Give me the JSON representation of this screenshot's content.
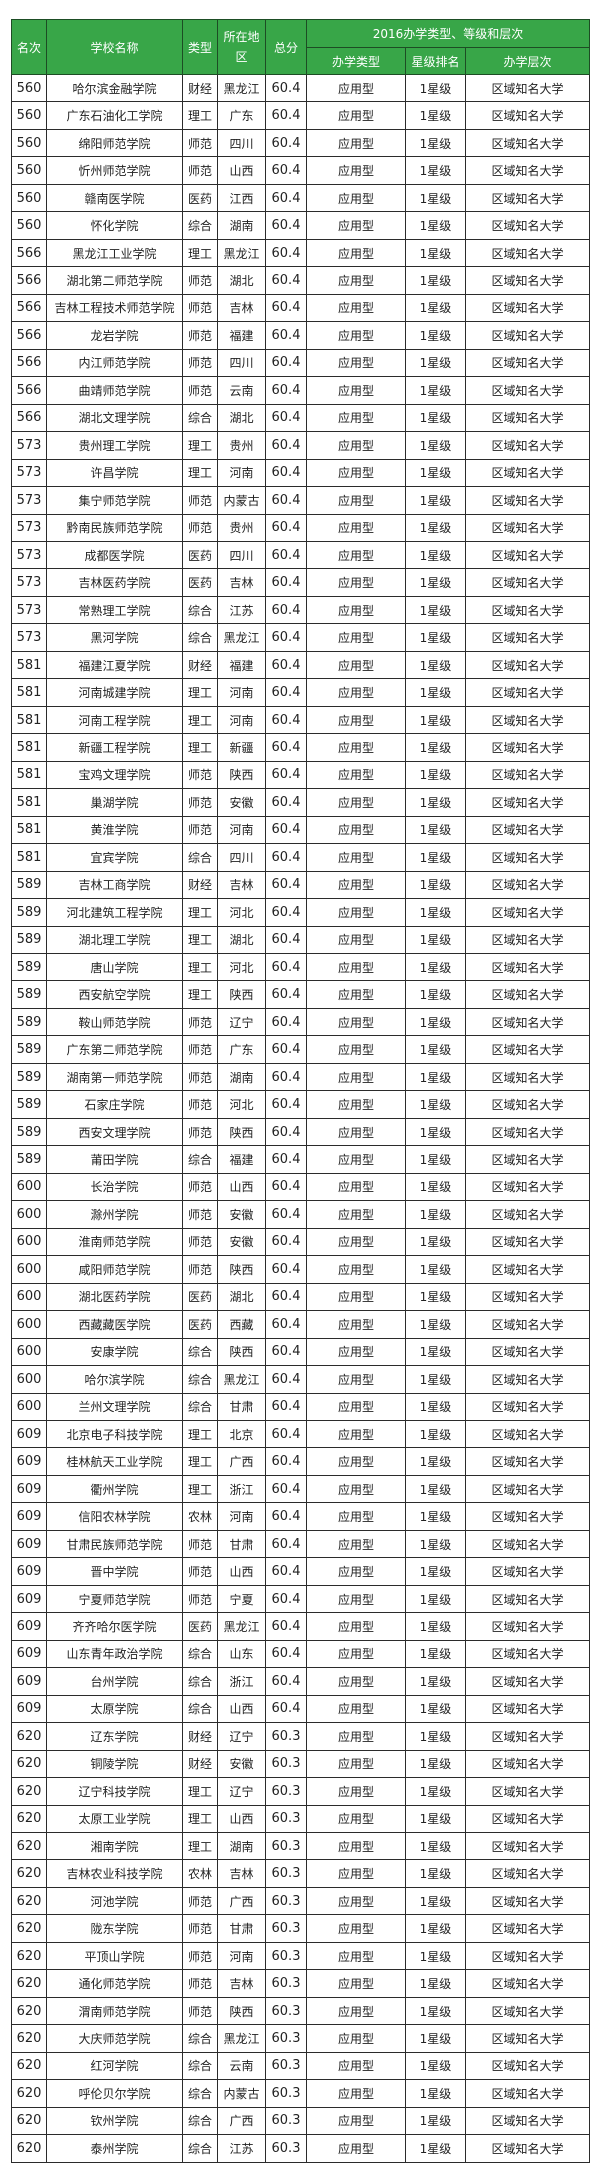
{
  "header": {
    "rank": "名次",
    "school": "学校名称",
    "type": "类型",
    "region": "所在地区",
    "score": "总分",
    "group": "2016办学类型、等级和层次",
    "school_type": "办学类型",
    "star": "星级排名",
    "level": "办学层次"
  },
  "colors": {
    "header_bg": "#38a648",
    "header_text": "#ffffff"
  },
  "rows": [
    [
      "560",
      "哈尔滨金融学院",
      "财经",
      "黑龙江",
      "60.4",
      "应用型",
      "1星级",
      "区域知名大学"
    ],
    [
      "560",
      "广东石油化工学院",
      "理工",
      "广东",
      "60.4",
      "应用型",
      "1星级",
      "区域知名大学"
    ],
    [
      "560",
      "绵阳师范学院",
      "师范",
      "四川",
      "60.4",
      "应用型",
      "1星级",
      "区域知名大学"
    ],
    [
      "560",
      "忻州师范学院",
      "师范",
      "山西",
      "60.4",
      "应用型",
      "1星级",
      "区域知名大学"
    ],
    [
      "560",
      "赣南医学院",
      "医药",
      "江西",
      "60.4",
      "应用型",
      "1星级",
      "区域知名大学"
    ],
    [
      "560",
      "怀化学院",
      "综合",
      "湖南",
      "60.4",
      "应用型",
      "1星级",
      "区域知名大学"
    ],
    [
      "566",
      "黑龙江工业学院",
      "理工",
      "黑龙江",
      "60.4",
      "应用型",
      "1星级",
      "区域知名大学"
    ],
    [
      "566",
      "湖北第二师范学院",
      "师范",
      "湖北",
      "60.4",
      "应用型",
      "1星级",
      "区域知名大学"
    ],
    [
      "566",
      "吉林工程技术师范学院",
      "师范",
      "吉林",
      "60.4",
      "应用型",
      "1星级",
      "区域知名大学"
    ],
    [
      "566",
      "龙岩学院",
      "师范",
      "福建",
      "60.4",
      "应用型",
      "1星级",
      "区域知名大学"
    ],
    [
      "566",
      "内江师范学院",
      "师范",
      "四川",
      "60.4",
      "应用型",
      "1星级",
      "区域知名大学"
    ],
    [
      "566",
      "曲靖师范学院",
      "师范",
      "云南",
      "60.4",
      "应用型",
      "1星级",
      "区域知名大学"
    ],
    [
      "566",
      "湖北文理学院",
      "综合",
      "湖北",
      "60.4",
      "应用型",
      "1星级",
      "区域知名大学"
    ],
    [
      "573",
      "贵州理工学院",
      "理工",
      "贵州",
      "60.4",
      "应用型",
      "1星级",
      "区域知名大学"
    ],
    [
      "573",
      "许昌学院",
      "理工",
      "河南",
      "60.4",
      "应用型",
      "1星级",
      "区域知名大学"
    ],
    [
      "573",
      "集宁师范学院",
      "师范",
      "内蒙古",
      "60.4",
      "应用型",
      "1星级",
      "区域知名大学"
    ],
    [
      "573",
      "黔南民族师范学院",
      "师范",
      "贵州",
      "60.4",
      "应用型",
      "1星级",
      "区域知名大学"
    ],
    [
      "573",
      "成都医学院",
      "医药",
      "四川",
      "60.4",
      "应用型",
      "1星级",
      "区域知名大学"
    ],
    [
      "573",
      "吉林医药学院",
      "医药",
      "吉林",
      "60.4",
      "应用型",
      "1星级",
      "区域知名大学"
    ],
    [
      "573",
      "常熟理工学院",
      "综合",
      "江苏",
      "60.4",
      "应用型",
      "1星级",
      "区域知名大学"
    ],
    [
      "573",
      "黑河学院",
      "综合",
      "黑龙江",
      "60.4",
      "应用型",
      "1星级",
      "区域知名大学"
    ],
    [
      "581",
      "福建江夏学院",
      "财经",
      "福建",
      "60.4",
      "应用型",
      "1星级",
      "区域知名大学"
    ],
    [
      "581",
      "河南城建学院",
      "理工",
      "河南",
      "60.4",
      "应用型",
      "1星级",
      "区域知名大学"
    ],
    [
      "581",
      "河南工程学院",
      "理工",
      "河南",
      "60.4",
      "应用型",
      "1星级",
      "区域知名大学"
    ],
    [
      "581",
      "新疆工程学院",
      "理工",
      "新疆",
      "60.4",
      "应用型",
      "1星级",
      "区域知名大学"
    ],
    [
      "581",
      "宝鸡文理学院",
      "师范",
      "陕西",
      "60.4",
      "应用型",
      "1星级",
      "区域知名大学"
    ],
    [
      "581",
      "巢湖学院",
      "师范",
      "安徽",
      "60.4",
      "应用型",
      "1星级",
      "区域知名大学"
    ],
    [
      "581",
      "黄淮学院",
      "师范",
      "河南",
      "60.4",
      "应用型",
      "1星级",
      "区域知名大学"
    ],
    [
      "581",
      "宜宾学院",
      "综合",
      "四川",
      "60.4",
      "应用型",
      "1星级",
      "区域知名大学"
    ],
    [
      "589",
      "吉林工商学院",
      "财经",
      "吉林",
      "60.4",
      "应用型",
      "1星级",
      "区域知名大学"
    ],
    [
      "589",
      "河北建筑工程学院",
      "理工",
      "河北",
      "60.4",
      "应用型",
      "1星级",
      "区域知名大学"
    ],
    [
      "589",
      "湖北理工学院",
      "理工",
      "湖北",
      "60.4",
      "应用型",
      "1星级",
      "区域知名大学"
    ],
    [
      "589",
      "唐山学院",
      "理工",
      "河北",
      "60.4",
      "应用型",
      "1星级",
      "区域知名大学"
    ],
    [
      "589",
      "西安航空学院",
      "理工",
      "陕西",
      "60.4",
      "应用型",
      "1星级",
      "区域知名大学"
    ],
    [
      "589",
      "鞍山师范学院",
      "师范",
      "辽宁",
      "60.4",
      "应用型",
      "1星级",
      "区域知名大学"
    ],
    [
      "589",
      "广东第二师范学院",
      "师范",
      "广东",
      "60.4",
      "应用型",
      "1星级",
      "区域知名大学"
    ],
    [
      "589",
      "湖南第一师范学院",
      "师范",
      "湖南",
      "60.4",
      "应用型",
      "1星级",
      "区域知名大学"
    ],
    [
      "589",
      "石家庄学院",
      "师范",
      "河北",
      "60.4",
      "应用型",
      "1星级",
      "区域知名大学"
    ],
    [
      "589",
      "西安文理学院",
      "师范",
      "陕西",
      "60.4",
      "应用型",
      "1星级",
      "区域知名大学"
    ],
    [
      "589",
      "莆田学院",
      "综合",
      "福建",
      "60.4",
      "应用型",
      "1星级",
      "区域知名大学"
    ],
    [
      "600",
      "长治学院",
      "师范",
      "山西",
      "60.4",
      "应用型",
      "1星级",
      "区域知名大学"
    ],
    [
      "600",
      "滁州学院",
      "师范",
      "安徽",
      "60.4",
      "应用型",
      "1星级",
      "区域知名大学"
    ],
    [
      "600",
      "淮南师范学院",
      "师范",
      "安徽",
      "60.4",
      "应用型",
      "1星级",
      "区域知名大学"
    ],
    [
      "600",
      "咸阳师范学院",
      "师范",
      "陕西",
      "60.4",
      "应用型",
      "1星级",
      "区域知名大学"
    ],
    [
      "600",
      "湖北医药学院",
      "医药",
      "湖北",
      "60.4",
      "应用型",
      "1星级",
      "区域知名大学"
    ],
    [
      "600",
      "西藏藏医学院",
      "医药",
      "西藏",
      "60.4",
      "应用型",
      "1星级",
      "区域知名大学"
    ],
    [
      "600",
      "安康学院",
      "综合",
      "陕西",
      "60.4",
      "应用型",
      "1星级",
      "区域知名大学"
    ],
    [
      "600",
      "哈尔滨学院",
      "综合",
      "黑龙江",
      "60.4",
      "应用型",
      "1星级",
      "区域知名大学"
    ],
    [
      "600",
      "兰州文理学院",
      "综合",
      "甘肃",
      "60.4",
      "应用型",
      "1星级",
      "区域知名大学"
    ],
    [
      "609",
      "北京电子科技学院",
      "理工",
      "北京",
      "60.4",
      "应用型",
      "1星级",
      "区域知名大学"
    ],
    [
      "609",
      "桂林航天工业学院",
      "理工",
      "广西",
      "60.4",
      "应用型",
      "1星级",
      "区域知名大学"
    ],
    [
      "609",
      "衢州学院",
      "理工",
      "浙江",
      "60.4",
      "应用型",
      "1星级",
      "区域知名大学"
    ],
    [
      "609",
      "信阳农林学院",
      "农林",
      "河南",
      "60.4",
      "应用型",
      "1星级",
      "区域知名大学"
    ],
    [
      "609",
      "甘肃民族师范学院",
      "师范",
      "甘肃",
      "60.4",
      "应用型",
      "1星级",
      "区域知名大学"
    ],
    [
      "609",
      "晋中学院",
      "师范",
      "山西",
      "60.4",
      "应用型",
      "1星级",
      "区域知名大学"
    ],
    [
      "609",
      "宁夏师范学院",
      "师范",
      "宁夏",
      "60.4",
      "应用型",
      "1星级",
      "区域知名大学"
    ],
    [
      "609",
      "齐齐哈尔医学院",
      "医药",
      "黑龙江",
      "60.4",
      "应用型",
      "1星级",
      "区域知名大学"
    ],
    [
      "609",
      "山东青年政治学院",
      "综合",
      "山东",
      "60.4",
      "应用型",
      "1星级",
      "区域知名大学"
    ],
    [
      "609",
      "台州学院",
      "综合",
      "浙江",
      "60.4",
      "应用型",
      "1星级",
      "区域知名大学"
    ],
    [
      "609",
      "太原学院",
      "综合",
      "山西",
      "60.4",
      "应用型",
      "1星级",
      "区域知名大学"
    ],
    [
      "620",
      "辽东学院",
      "财经",
      "辽宁",
      "60.3",
      "应用型",
      "1星级",
      "区域知名大学"
    ],
    [
      "620",
      "铜陵学院",
      "财经",
      "安徽",
      "60.3",
      "应用型",
      "1星级",
      "区域知名大学"
    ],
    [
      "620",
      "辽宁科技学院",
      "理工",
      "辽宁",
      "60.3",
      "应用型",
      "1星级",
      "区域知名大学"
    ],
    [
      "620",
      "太原工业学院",
      "理工",
      "山西",
      "60.3",
      "应用型",
      "1星级",
      "区域知名大学"
    ],
    [
      "620",
      "湘南学院",
      "理工",
      "湖南",
      "60.3",
      "应用型",
      "1星级",
      "区域知名大学"
    ],
    [
      "620",
      "吉林农业科技学院",
      "农林",
      "吉林",
      "60.3",
      "应用型",
      "1星级",
      "区域知名大学"
    ],
    [
      "620",
      "河池学院",
      "师范",
      "广西",
      "60.3",
      "应用型",
      "1星级",
      "区域知名大学"
    ],
    [
      "620",
      "陇东学院",
      "师范",
      "甘肃",
      "60.3",
      "应用型",
      "1星级",
      "区域知名大学"
    ],
    [
      "620",
      "平顶山学院",
      "师范",
      "河南",
      "60.3",
      "应用型",
      "1星级",
      "区域知名大学"
    ],
    [
      "620",
      "通化师范学院",
      "师范",
      "吉林",
      "60.3",
      "应用型",
      "1星级",
      "区域知名大学"
    ],
    [
      "620",
      "渭南师范学院",
      "师范",
      "陕西",
      "60.3",
      "应用型",
      "1星级",
      "区域知名大学"
    ],
    [
      "620",
      "大庆师范学院",
      "综合",
      "黑龙江",
      "60.3",
      "应用型",
      "1星级",
      "区域知名大学"
    ],
    [
      "620",
      "红河学院",
      "综合",
      "云南",
      "60.3",
      "应用型",
      "1星级",
      "区域知名大学"
    ],
    [
      "620",
      "呼伦贝尔学院",
      "综合",
      "内蒙古",
      "60.3",
      "应用型",
      "1星级",
      "区域知名大学"
    ],
    [
      "620",
      "钦州学院",
      "综合",
      "广西",
      "60.3",
      "应用型",
      "1星级",
      "区域知名大学"
    ],
    [
      "620",
      "泰州学院",
      "综合",
      "江苏",
      "60.3",
      "应用型",
      "1星级",
      "区域知名大学"
    ]
  ]
}
